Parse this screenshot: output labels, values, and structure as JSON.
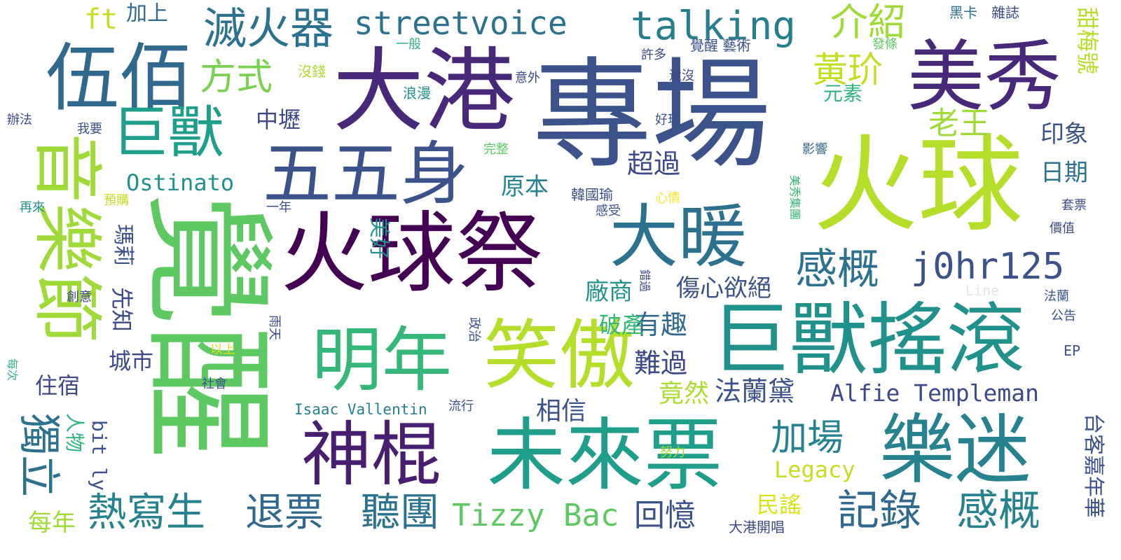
{
  "words": {
    "zhuanchang": "專場",
    "huoqiuji": "火球祭",
    "juexing": "覺醒",
    "huoqiu": "火球",
    "dagang": "大港",
    "juxiaoyaogun": "巨獸搖滾",
    "weilaipiao": "未來票",
    "meixiu": "美秀",
    "wubai": "伍佰",
    "xiaoao": "笑傲",
    "mingnian": "明年",
    "yuemi": "樂迷",
    "shengun": "神棍",
    "wuwushen": "五五身",
    "dannuan": "大暖",
    "yinyuejie": "音樂節",
    "jushou": "巨獸",
    "streetvoice": "streetvoice",
    "talking": "talking",
    "miehuoqi": "滅火器",
    "j0hr125": "j0hr125",
    "ganka1": "感概",
    "ganka2": "感概",
    "jishou": "記錄",
    "jiachang": "加場",
    "tingtuan": "聽團",
    "tuipiao": "退票",
    "reixiesheng": "熱寫生",
    "duli": "獨立",
    "tizzybac": "Tizzy Bac",
    "alfie": "Alfie Templeman",
    "jieshao": "介紹",
    "fangshi": "方式",
    "huangling": "黃玠",
    "laowang": "老王",
    "ostinato": "Ostinato",
    "chaoguo": "超過",
    "yuanben": "原本",
    "shangxin": "傷心欲絕",
    "changshang": "廠商",
    "youqu": "有趣",
    "nanguo": "難過",
    "falandai": "法蘭黛",
    "jingran": "竟然",
    "xiangxin": "相信",
    "huiyi": "回憶",
    "legacy": "Legacy",
    "minyao": "民謠",
    "posan": "破產",
    "yinxiang": "印象",
    "riqi": "日期",
    "meinian": "每年",
    "zhusu": "住宿",
    "chengshi": "城市",
    "xianzhi": "先知",
    "mali": "瑪莉",
    "meihao": "美好",
    "bitly": "bit ly",
    "renwu": "人物",
    "jiashang": "加上",
    "ft": "ft",
    "zhongli": "中壢",
    "yuansu": "元素",
    "isaac": "Isaac Vallentin",
    "heika": "黑卡",
    "zazhi": "雜誌",
    "tianmeihao": "甜梅號",
    "taikejianianhua": "台客嘉年華",
    "jueyishu": "覺醒 藝術",
    "xuduo": "許多",
    "haimei": "還沒",
    "haowan": "好玩",
    "yiban": "一般",
    "meiqian": "沒錢",
    "langman": "浪漫",
    "yiwai": "意外",
    "fatiao": "發條",
    "banfa": "辦法",
    "woyao": "我要",
    "wanzheng": "完整",
    "yingxiang": "影響",
    "hanguoyu": "韓國瑜",
    "xinqing": "心情",
    "ganshou": "感受",
    "zailai": "再來",
    "yugou": "預購",
    "yinian": "一年",
    "meixiujituan": "美秀集團",
    "taopiao": "套票",
    "jiazhi": "價值",
    "line": "Line",
    "falan": "法蘭",
    "gonggao": "公告",
    "ep": "EP",
    "chuangyi": "創意",
    "cuoguo": "錯過",
    "yutian": "雨天",
    "zhengzhi": "政治",
    "yishang": "以上",
    "shehui": "社會",
    "meici": "每次",
    "liuxing": "流行",
    "nuli": "努力",
    "dagangkaichang": "大港開唱"
  }
}
